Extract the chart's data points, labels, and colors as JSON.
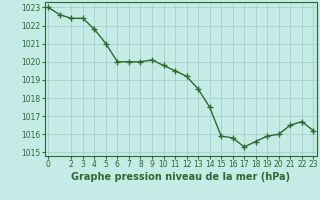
{
  "x": [
    0,
    1,
    2,
    3,
    4,
    5,
    6,
    7,
    8,
    9,
    10,
    11,
    12,
    13,
    14,
    15,
    16,
    17,
    18,
    19,
    20,
    21,
    22,
    23
  ],
  "y": [
    1023.0,
    1022.6,
    1022.4,
    1022.4,
    1021.8,
    1021.0,
    1020.0,
    1020.0,
    1020.0,
    1020.1,
    1019.8,
    1019.5,
    1019.2,
    1018.5,
    1017.5,
    1015.9,
    1015.8,
    1015.3,
    1015.6,
    1015.9,
    1016.0,
    1016.5,
    1016.7,
    1016.2
  ],
  "line_color": "#2d6a2d",
  "marker_color": "#2d6a2d",
  "bg_color": "#c5ebe6",
  "grid_color": "#a0ccc8",
  "xlabel": "Graphe pression niveau de la mer (hPa)",
  "ylim": [
    1014.8,
    1023.3
  ],
  "xlim": [
    -0.3,
    23.3
  ],
  "yticks": [
    1015,
    1016,
    1017,
    1018,
    1019,
    1020,
    1021,
    1022,
    1023
  ],
  "xticks": [
    0,
    2,
    3,
    4,
    5,
    6,
    7,
    8,
    9,
    10,
    11,
    12,
    13,
    14,
    15,
    16,
    17,
    18,
    19,
    20,
    21,
    22,
    23
  ],
  "tick_fontsize": 5.5,
  "xlabel_fontsize": 7,
  "marker_size": 2.5,
  "line_width": 1.0
}
